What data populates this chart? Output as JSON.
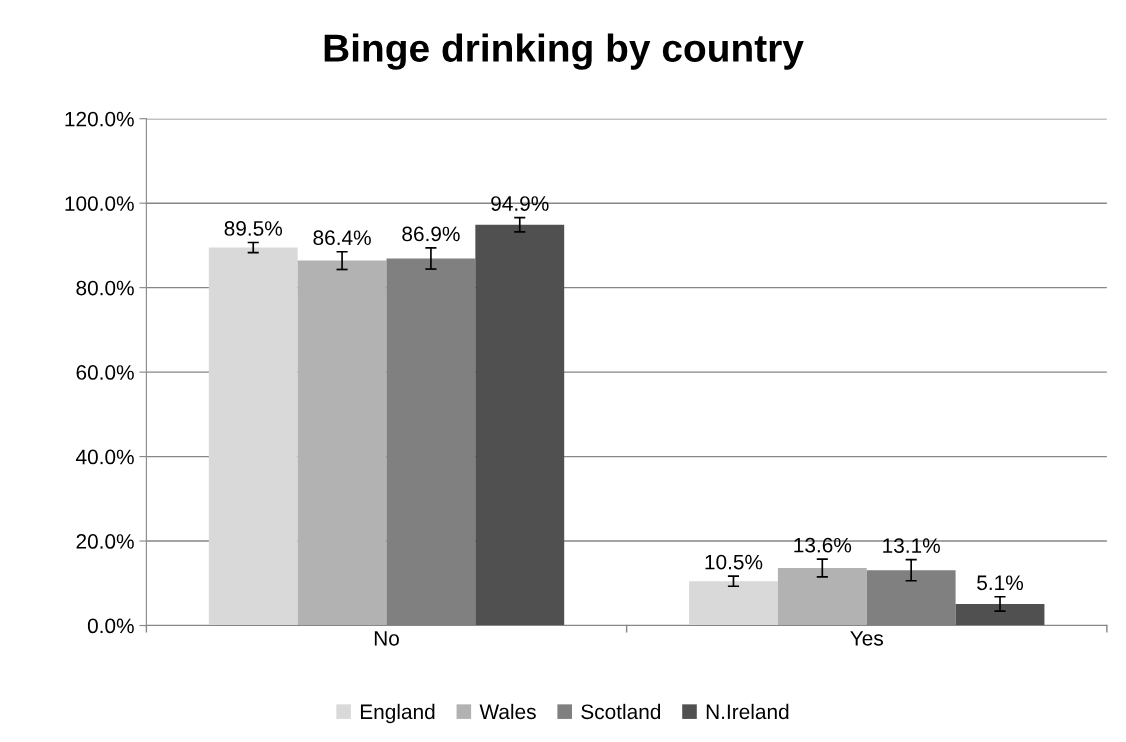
{
  "chart_data": {
    "type": "bar",
    "title": "Binge drinking by country",
    "categories": [
      "No",
      "Yes"
    ],
    "series": [
      {
        "name": "England",
        "color": "#d9d9d9",
        "values": [
          89.5,
          10.5
        ],
        "errors": [
          1.2,
          1.2
        ],
        "value_labels": [
          "89.5%",
          "10.5%"
        ]
      },
      {
        "name": "Wales",
        "color": "#b2b2b2",
        "values": [
          86.4,
          13.6
        ],
        "errors": [
          2.1,
          2.1
        ],
        "value_labels": [
          "86.4%",
          "13.6%"
        ]
      },
      {
        "name": "Scotland",
        "color": "#808080",
        "values": [
          86.9,
          13.1
        ],
        "errors": [
          2.5,
          2.5
        ],
        "value_labels": [
          "86.9%",
          "13.1%"
        ]
      },
      {
        "name": "N.Ireland",
        "color": "#505050",
        "values": [
          94.9,
          5.1
        ],
        "errors": [
          1.7,
          1.7
        ],
        "value_labels": [
          "94.9%",
          "5.1%"
        ]
      }
    ],
    "ylim": [
      0,
      120
    ],
    "yticks": [
      {
        "value": 0,
        "label": "0.0%"
      },
      {
        "value": 20,
        "label": "20.0%"
      },
      {
        "value": 40,
        "label": "40.0%"
      },
      {
        "value": 60,
        "label": "60.0%"
      },
      {
        "value": 80,
        "label": "80.0%"
      },
      {
        "value": 100,
        "label": "100.0%"
      },
      {
        "value": 120,
        "label": "120.0%"
      }
    ],
    "grid": "y",
    "legend": "bottom"
  }
}
